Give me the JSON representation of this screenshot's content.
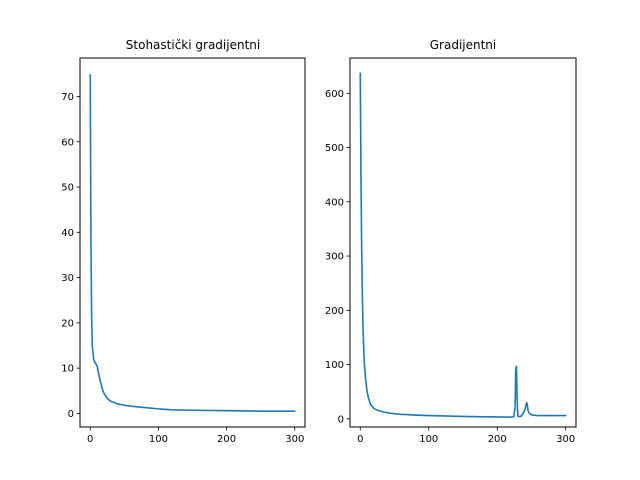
{
  "chart_data": [
    {
      "type": "line",
      "title": "Stohastički gradijentni",
      "xlabel": "",
      "ylabel": "",
      "xlim": [
        -15,
        315
      ],
      "ylim": [
        -3,
        78.5
      ],
      "xticks": [
        0,
        100,
        200,
        300
      ],
      "yticks": [
        0,
        10,
        20,
        30,
        40,
        50,
        60,
        70
      ],
      "grid": false,
      "color": "#1f77b4",
      "series": [
        {
          "x": [
            0,
            1,
            2,
            3,
            5,
            7,
            8,
            10,
            12,
            15,
            18,
            20,
            25,
            30,
            40,
            50,
            60,
            80,
            100,
            120,
            150,
            200,
            250,
            300
          ],
          "values": [
            74.8,
            40,
            22,
            15,
            12,
            11.2,
            11,
            10.5,
            9,
            7,
            5.3,
            4.5,
            3.3,
            2.7,
            2.1,
            1.8,
            1.6,
            1.3,
            1.0,
            0.8,
            0.7,
            0.6,
            0.5,
            0.5
          ]
        }
      ]
    },
    {
      "type": "line",
      "title": "Gradijentni",
      "xlabel": "",
      "ylabel": "",
      "xlim": [
        -15,
        315
      ],
      "ylim": [
        -15,
        665
      ],
      "xticks": [
        0,
        100,
        200,
        300
      ],
      "yticks": [
        0,
        100,
        200,
        300,
        400,
        500,
        600
      ],
      "grid": false,
      "color": "#1f77b4",
      "series": [
        {
          "x": [
            0,
            1,
            2,
            3,
            4,
            5,
            6,
            8,
            10,
            12,
            15,
            18,
            20,
            25,
            30,
            40,
            50,
            60,
            80,
            100,
            120,
            150,
            180,
            200,
            210,
            220,
            224,
            226,
            227,
            228,
            229,
            230,
            232,
            235,
            240,
            242,
            243,
            244,
            245,
            247,
            250,
            255,
            260,
            270,
            280,
            290,
            300
          ],
          "values": [
            637,
            450,
            320,
            230,
            170,
            130,
            100,
            70,
            50,
            38,
            27,
            22,
            19,
            16,
            14,
            11,
            9.5,
            8.3,
            7,
            6,
            5.3,
            4.5,
            3.8,
            3.5,
            3.3,
            3.2,
            4,
            20,
            90,
            97,
            40,
            5,
            4,
            5,
            15,
            25,
            30,
            25,
            15,
            10,
            7.5,
            6.5,
            6,
            6,
            6,
            6,
            6
          ]
        }
      ]
    }
  ]
}
